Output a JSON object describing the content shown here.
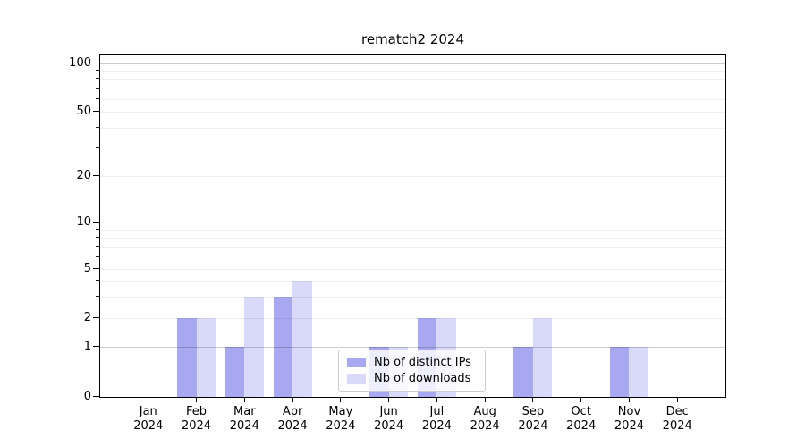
{
  "chart_data": {
    "type": "bar",
    "title": "rematch2 2024",
    "categories": [
      "Jan",
      "Feb",
      "Mar",
      "Apr",
      "May",
      "Jun",
      "Jul",
      "Aug",
      "Sep",
      "Oct",
      "Nov",
      "Dec"
    ],
    "category_year": "2024",
    "series": [
      {
        "name": "Nb of distinct IPs",
        "color": "#a8a8f0",
        "values": [
          0,
          2,
          1,
          3,
          0,
          1,
          2,
          0,
          1,
          0,
          1,
          0
        ]
      },
      {
        "name": "Nb of downloads",
        "color": "#d9d9fa",
        "values": [
          0,
          2,
          3,
          4,
          0,
          1,
          2,
          0,
          2,
          0,
          1,
          0
        ]
      }
    ],
    "xlabel": "",
    "ylabel": "",
    "yticks": [
      0,
      1,
      2,
      5,
      10,
      20,
      50,
      100
    ],
    "yscale": "log-like (0 baseline, log above 1)",
    "ylim": [
      0,
      110
    ],
    "grid": "horizontal",
    "legend_position": "lower center"
  }
}
